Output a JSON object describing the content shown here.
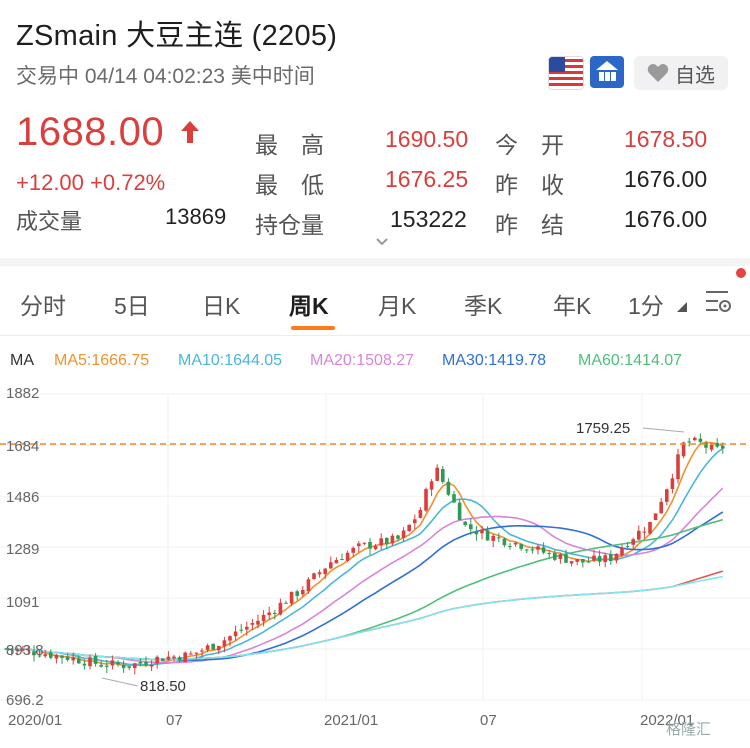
{
  "header": {
    "title": "ZSmain  大豆主连 (2205)",
    "subtitle": "交易中 04/14 04:02:23 美中时间",
    "favorite_label": "自选"
  },
  "quote": {
    "price": "1688.00",
    "change": "+12.00 +0.72%",
    "volume_label": "成交量",
    "volume_value": "13869",
    "high_label": "最　高",
    "high_value": "1690.50",
    "low_label": "最　低",
    "low_value": "1676.25",
    "oi_label": "持仓量",
    "oi_value": "153222",
    "open_label": "今　开",
    "open_value": "1678.50",
    "prev_close_label": "昨　收",
    "prev_close_value": "1676.00",
    "prev_settle_label": "昨　结",
    "prev_settle_value": "1676.00"
  },
  "tabs": [
    "分时",
    "5日",
    "日K",
    "周K",
    "月K",
    "季K",
    "年K",
    "1分"
  ],
  "active_tab": "周K",
  "ma_legend": {
    "label": "MA",
    "items": [
      {
        "text": "MA5:1666.75",
        "color": "#f0922e"
      },
      {
        "text": "MA10:1644.05",
        "color": "#4bb6d8"
      },
      {
        "text": "MA20:1508.27",
        "color": "#d985d7"
      },
      {
        "text": "MA30:1419.78",
        "color": "#2f6fd6"
      },
      {
        "text": "MA60:1414.07",
        "color": "#4fbf7a"
      }
    ]
  },
  "chart_data": {
    "type": "candlestick",
    "y_ticks": [
      "1882",
      "1684",
      "1486",
      "1289",
      "1091",
      "893.8",
      "696.2"
    ],
    "x_ticks": [
      "2020/01",
      "07",
      "2021/01",
      "07",
      "2022/01"
    ],
    "ylim": [
      696.2,
      1882
    ],
    "current_price_line": 1688.0,
    "annotations": [
      {
        "text": "1759.25",
        "value": 1759.25
      },
      {
        "text": "818.50",
        "value": 818.5
      }
    ]
  },
  "watermark": "格隆汇",
  "colors": {
    "up": "#d9403d",
    "down": "#2e9a55",
    "accent": "#ff7a1a"
  }
}
